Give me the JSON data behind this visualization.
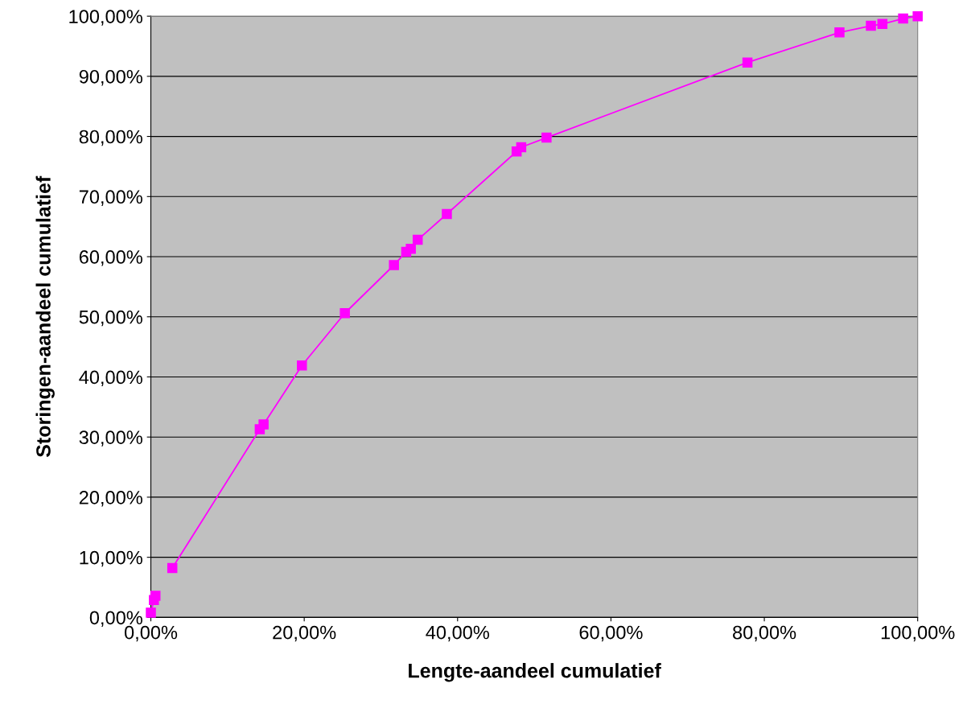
{
  "chart_data": {
    "type": "line",
    "xlabel": "Lengte-aandeel cumulatief",
    "ylabel": "Storingen-aandeel cumulatief",
    "x": [
      0.0,
      0.4,
      0.6,
      2.6,
      2.8,
      14.2,
      14.7,
      19.7,
      25.3,
      31.7,
      33.3,
      33.9,
      34.8,
      38.6,
      47.7,
      48.3,
      51.6,
      77.8,
      89.8,
      93.9,
      95.4,
      98.1,
      100
    ],
    "series": [
      {
        "color": "#ff00ff",
        "values": [
          0.8,
          2.9,
          3.6,
          null,
          8.2,
          31.3,
          32.1,
          41.9,
          50.6,
          58.6,
          60.8,
          61.3,
          62.8,
          67.1,
          77.5,
          78.2,
          79.8,
          92.3,
          97.3,
          98.4,
          98.7,
          99.6,
          100
        ]
      }
    ],
    "marker": "square",
    "line_style": "solid",
    "grid": "y",
    "legend": false,
    "xlim": [
      0,
      100
    ],
    "ylim": [
      0,
      100
    ],
    "xticks": [
      {
        "value": 0,
        "label": "0,00%"
      },
      {
        "value": 20,
        "label": "20,00%"
      },
      {
        "value": 40,
        "label": "40,00%"
      },
      {
        "value": 60,
        "label": "60,00%"
      },
      {
        "value": 80,
        "label": "80,00%"
      },
      {
        "value": 100,
        "label": "100,00%"
      }
    ],
    "yticks": [
      {
        "value": 0,
        "label": "0,00%"
      },
      {
        "value": 10,
        "label": "10,00%"
      },
      {
        "value": 20,
        "label": "20,00%"
      },
      {
        "value": 30,
        "label": "30,00%"
      },
      {
        "value": 40,
        "label": "40,00%"
      },
      {
        "value": 50,
        "label": "50,00%"
      },
      {
        "value": 60,
        "label": "60,00%"
      },
      {
        "value": 70,
        "label": "70,00%"
      },
      {
        "value": 80,
        "label": "80,00%"
      },
      {
        "value": 90,
        "label": "90,00%"
      },
      {
        "value": 100,
        "label": "100,00%"
      }
    ]
  }
}
